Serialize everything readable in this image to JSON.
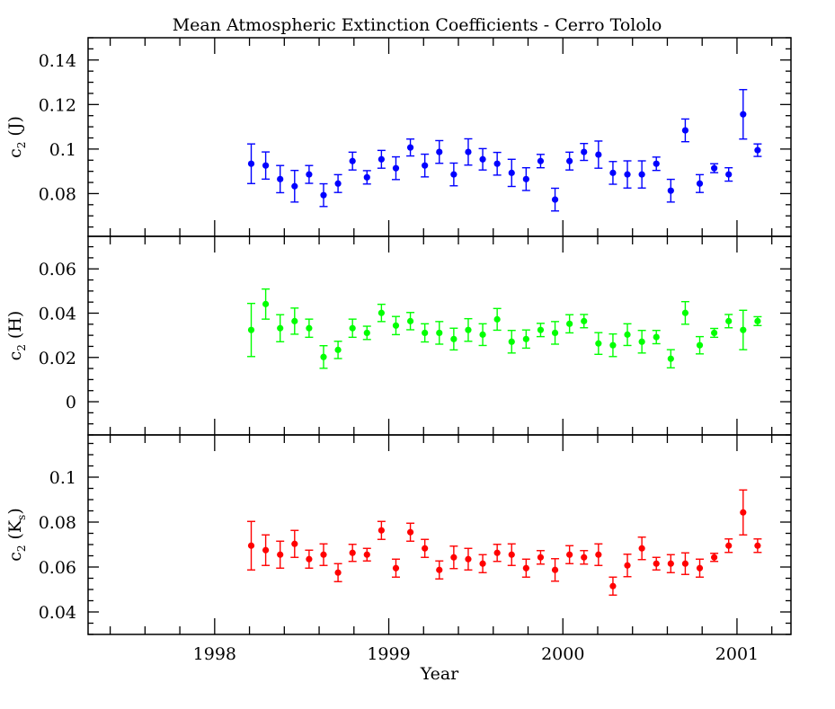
{
  "chart_data": [
    {
      "type": "scatter",
      "title": "Mean Atmospheric Extinction Coefficients - Cerro Tololo",
      "ylabel": "c2 (J)",
      "ylabel_main": "c",
      "ylabel_sub": "2",
      "ylabel_band": "J",
      "ylabel_band_sub": "",
      "color": "#0000ff",
      "ylim": [
        0.0608,
        0.15
      ],
      "yticks": [
        0.08,
        0.1,
        0.12,
        0.14
      ],
      "ytick_labels": [
        "0.08",
        "0.1",
        "0.12",
        "0.14"
      ],
      "yminor": 0.005,
      "values": [
        0.0934,
        0.0926,
        0.0865,
        0.0833,
        0.0886,
        0.0793,
        0.0845,
        0.0946,
        0.0873,
        0.0954,
        0.0914,
        0.1007,
        0.0926,
        0.0987,
        0.0886,
        0.0987,
        0.0954,
        0.0934,
        0.0893,
        0.0865,
        0.0946,
        0.0773,
        0.0946,
        0.0987,
        0.0975,
        0.0893,
        0.0886,
        0.0886,
        0.0934,
        0.0813,
        0.1084,
        0.0845,
        0.0914,
        0.0886,
        0.1156,
        0.0995
      ],
      "errors": [
        0.0089,
        0.0061,
        0.0061,
        0.0071,
        0.004,
        0.0051,
        0.004,
        0.004,
        0.003,
        0.004,
        0.0051,
        0.0038,
        0.0051,
        0.0051,
        0.0051,
        0.0059,
        0.0048,
        0.0051,
        0.0061,
        0.0051,
        0.003,
        0.0051,
        0.004,
        0.0038,
        0.0061,
        0.0051,
        0.0061,
        0.0061,
        0.003,
        0.0051,
        0.0051,
        0.004,
        0.002,
        0.003,
        0.0111,
        0.0028
      ]
    },
    {
      "type": "scatter",
      "ylabel": "c2 (H)",
      "ylabel_main": "c",
      "ylabel_sub": "2",
      "ylabel_band": "H",
      "ylabel_band_sub": "",
      "color": "#00ff00",
      "ylim": [
        -0.015,
        0.0747
      ],
      "yticks": [
        0,
        0.02,
        0.04,
        0.06
      ],
      "ytick_labels": [
        "0",
        "0.02",
        "0.04",
        "0.06"
      ],
      "yminor": 0.005,
      "values": [
        0.0324,
        0.0441,
        0.0332,
        0.0364,
        0.0332,
        0.0202,
        0.0234,
        0.0332,
        0.0311,
        0.0401,
        0.0344,
        0.0364,
        0.0311,
        0.0311,
        0.0283,
        0.0324,
        0.0303,
        0.0372,
        0.0271,
        0.0283,
        0.0324,
        0.0311,
        0.0352,
        0.0364,
        0.0263,
        0.0255,
        0.0303,
        0.0271,
        0.0292,
        0.0194,
        0.0401,
        0.0255,
        0.0311,
        0.0364,
        0.0324,
        0.0364
      ],
      "errors": [
        0.012,
        0.0068,
        0.0061,
        0.0059,
        0.0041,
        0.0051,
        0.0039,
        0.0041,
        0.003,
        0.0039,
        0.0041,
        0.0039,
        0.0041,
        0.0051,
        0.0049,
        0.0051,
        0.0049,
        0.0049,
        0.0051,
        0.0041,
        0.003,
        0.0051,
        0.0041,
        0.003,
        0.0049,
        0.0051,
        0.0049,
        0.0051,
        0.003,
        0.0041,
        0.0051,
        0.0039,
        0.002,
        0.003,
        0.0089,
        0.002
      ]
    },
    {
      "type": "scatter",
      "ylabel": "c2 (Ks)",
      "ylabel_main": "c",
      "ylabel_sub": "2",
      "ylabel_band": "K",
      "ylabel_band_sub": "s",
      "color": "#ff0000",
      "xlabel": "Year",
      "ylim": [
        0.03,
        0.1188
      ],
      "yticks": [
        0.04,
        0.06,
        0.08,
        0.1
      ],
      "ytick_labels": [
        "0.04",
        "0.06",
        "0.08",
        "0.1"
      ],
      "yminor": 0.005,
      "values": [
        0.0695,
        0.0675,
        0.0655,
        0.0703,
        0.0635,
        0.0655,
        0.0575,
        0.0663,
        0.0655,
        0.0763,
        0.0595,
        0.0755,
        0.0683,
        0.0587,
        0.0643,
        0.0635,
        0.0615,
        0.0663,
        0.0655,
        0.0595,
        0.0643,
        0.0587,
        0.0655,
        0.0643,
        0.0655,
        0.0515,
        0.0607,
        0.0683,
        0.0615,
        0.0615,
        0.0615,
        0.0595,
        0.0643,
        0.0695,
        0.0843,
        0.0695
      ],
      "errors": [
        0.0108,
        0.0068,
        0.006,
        0.006,
        0.004,
        0.0048,
        0.004,
        0.0038,
        0.0028,
        0.004,
        0.004,
        0.004,
        0.004,
        0.004,
        0.005,
        0.0048,
        0.004,
        0.0038,
        0.0048,
        0.004,
        0.003,
        0.005,
        0.004,
        0.003,
        0.0048,
        0.004,
        0.005,
        0.005,
        0.0028,
        0.004,
        0.0048,
        0.004,
        0.0018,
        0.003,
        0.01,
        0.003
      ]
    }
  ],
  "x_axis": {
    "xlim": [
      1997.273,
      2001.31
    ],
    "xticks": [
      1998,
      1999,
      2000,
      2001
    ],
    "xtick_labels": [
      "1998",
      "1999",
      "2000",
      "2001"
    ],
    "xminor": 0.2,
    "x_start": 1998.21,
    "x_step": 0.0831
  },
  "labels": {
    "title": "Mean Atmospheric Extinction Coefficients - Cerro Tololo",
    "xlabel": "Year"
  }
}
